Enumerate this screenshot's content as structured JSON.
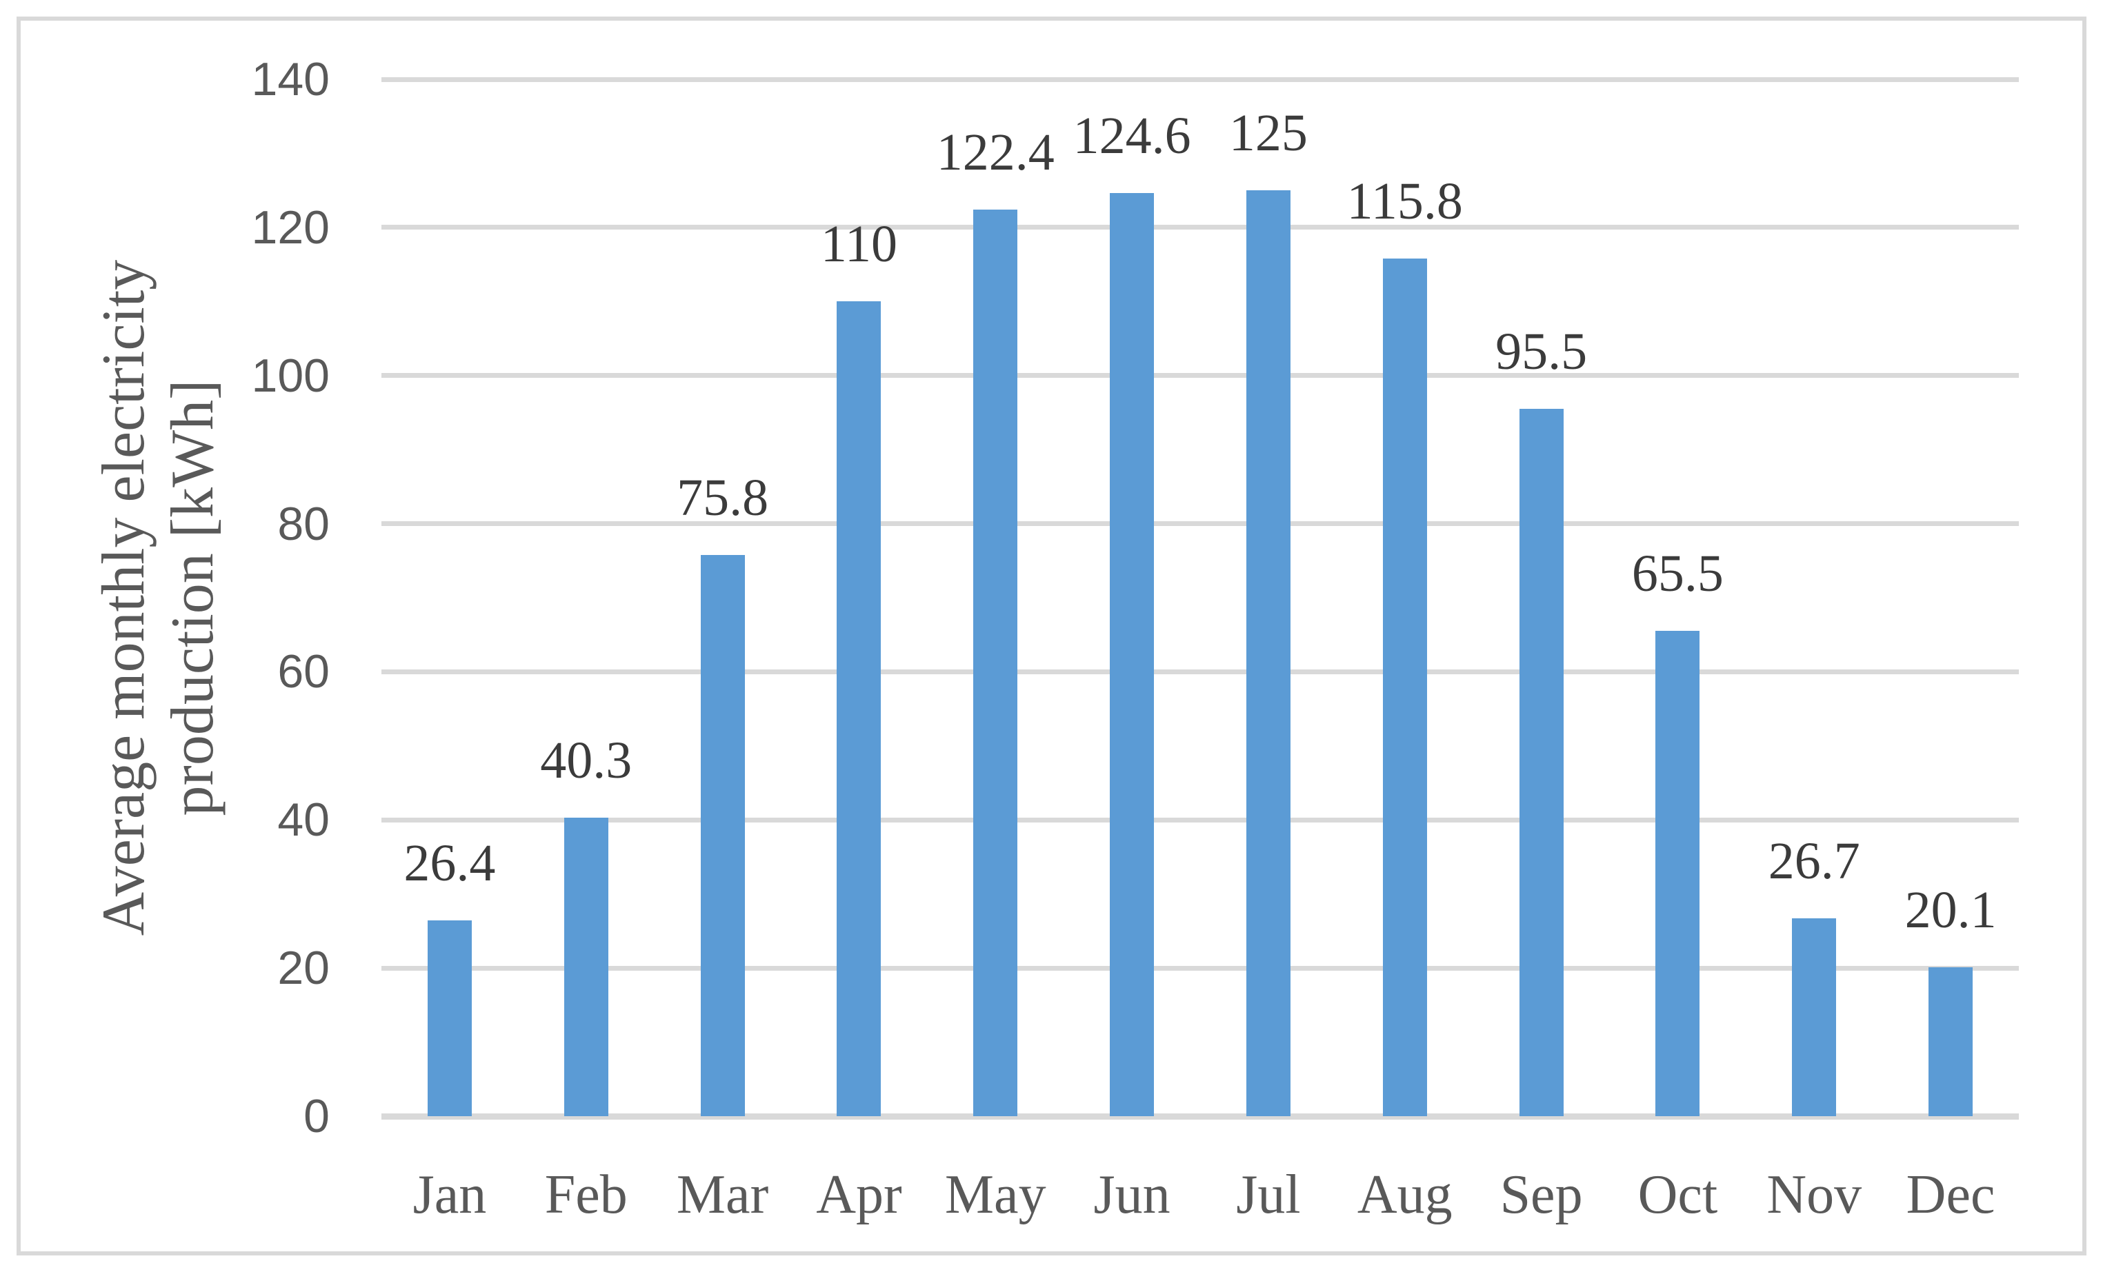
{
  "chart_data": {
    "type": "bar",
    "title": "",
    "categories": [
      "Jan",
      "Feb",
      "Mar",
      "Apr",
      "May",
      "Jun",
      "Jul",
      "Aug",
      "Sep",
      "Oct",
      "Nov",
      "Dec"
    ],
    "values": [
      26.4,
      40.3,
      75.8,
      110,
      122.4,
      124.6,
      125,
      115.8,
      95.5,
      65.5,
      26.7,
      20.1
    ],
    "value_labels": [
      "26.4",
      "40.3",
      "75.8",
      "110",
      "122.4",
      "124.6",
      "125",
      "115.8",
      "95.5",
      "65.5",
      "26.7",
      "20.1"
    ],
    "xlabel": "",
    "ylabel": "Average monthly electricity production [kWh]",
    "ylabel_lines": [
      "Average monthly electricity",
      "production [kWh]"
    ],
    "ylim": [
      0,
      140
    ],
    "yticks": [
      0,
      20,
      40,
      60,
      80,
      100,
      120,
      140
    ],
    "grid": "horizontal",
    "legend": "none",
    "bar_color": "#5B9BD5",
    "gridline_color": "#D9D9D9",
    "axis_line_color": "#D9D9D9",
    "tick_label_color": "#595959",
    "category_label_color": "#595959",
    "data_label_color": "#3B3B3B",
    "frame_border_color": "#D9D9D9",
    "background_color": "#FFFFFF"
  }
}
